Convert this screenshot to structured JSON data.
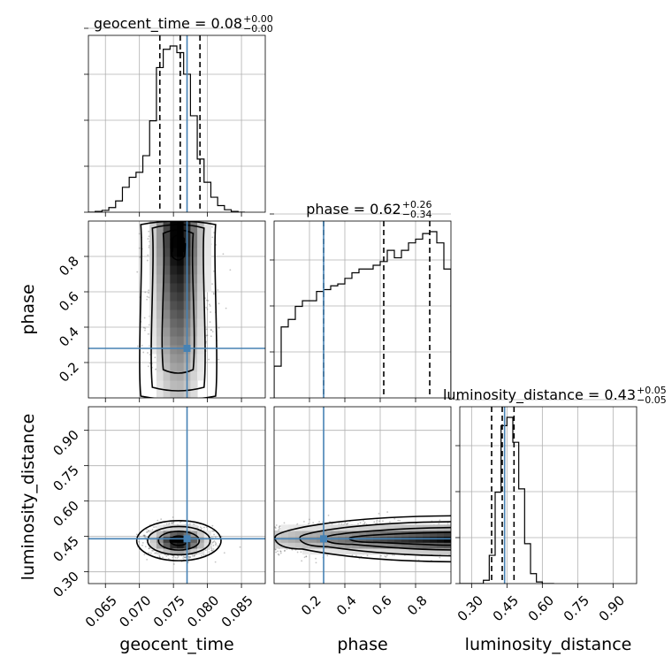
{
  "chart_data": {
    "type": "corner",
    "parameters": [
      "geocent_time",
      "phase",
      "luminosity_distance"
    ],
    "truths": {
      "geocent_time": 0.077,
      "phase": 0.28,
      "luminosity_distance": 0.44
    },
    "accent_color": "#4682b4",
    "grid": true,
    "ranges": {
      "geocent_time": [
        0.0625,
        0.0885
      ],
      "phase": [
        0.0,
        1.0
      ],
      "luminosity_distance": [
        0.25,
        1.0
      ]
    },
    "titles": {
      "geocent_time": {
        "prefix": "geocent_time = 0.08",
        "plus": "+0.00",
        "minus": "−0.00"
      },
      "phase": {
        "prefix": "phase = 0.62",
        "plus": "+0.26",
        "minus": "−0.34"
      },
      "luminosity_distance": {
        "prefix": "luminosity_distance = 0.43",
        "plus": "+0.05",
        "minus": "−0.05"
      }
    },
    "quantiles": {
      "geocent_time": [
        0.073,
        0.076,
        0.0789
      ],
      "phase": [
        0.28,
        0.62,
        0.88
      ],
      "luminosity_distance": [
        0.385,
        0.43,
        0.48
      ]
    },
    "ticks": {
      "geocent_time": {
        "values": [
          0.065,
          0.07,
          0.075,
          0.08,
          0.085
        ],
        "labels": [
          "0.065",
          "0.070",
          "0.075",
          "0.080",
          "0.085"
        ]
      },
      "phase": {
        "values": [
          0.2,
          0.4,
          0.6,
          0.8
        ],
        "labels": [
          "0.2",
          "0.4",
          "0.6",
          "0.8"
        ]
      },
      "luminosity_distance": {
        "values": [
          0.3,
          0.45,
          0.6,
          0.75,
          0.9
        ],
        "labels": [
          "0.30",
          "0.45",
          "0.60",
          "0.75",
          "0.90"
        ]
      }
    },
    "histograms": {
      "geocent_time": {
        "edges": [
          0.0625,
          0.0635,
          0.0645,
          0.0655,
          0.0665,
          0.0675,
          0.0685,
          0.0695,
          0.0705,
          0.0715,
          0.0725,
          0.0735,
          0.0745,
          0.0755,
          0.0765,
          0.0775,
          0.0785,
          0.0795,
          0.0805,
          0.0815,
          0.0825,
          0.0835,
          0.0845,
          0.0855
        ],
        "heights": [
          0.0,
          0.005,
          0.011,
          0.028,
          0.068,
          0.15,
          0.21,
          0.24,
          0.34,
          0.55,
          0.87,
          0.98,
          1.0,
          0.96,
          0.83,
          0.58,
          0.32,
          0.18,
          0.09,
          0.04,
          0.015,
          0.005,
          0.0
        ]
      },
      "phase": {
        "edges": [
          0.0,
          0.04,
          0.08,
          0.12,
          0.16,
          0.2,
          0.24,
          0.28,
          0.32,
          0.36,
          0.4,
          0.44,
          0.48,
          0.52,
          0.56,
          0.6,
          0.64,
          0.68,
          0.72,
          0.76,
          0.8,
          0.84,
          0.88,
          0.92,
          0.96,
          1.0
        ],
        "heights": [
          0.17,
          0.38,
          0.42,
          0.49,
          0.52,
          0.52,
          0.57,
          0.58,
          0.6,
          0.61,
          0.64,
          0.67,
          0.69,
          0.69,
          0.71,
          0.73,
          0.79,
          0.75,
          0.79,
          0.83,
          0.85,
          0.88,
          0.89,
          0.83,
          0.69
        ]
      },
      "luminosity_distance": {
        "edges": [
          0.25,
          0.275,
          0.3,
          0.325,
          0.35,
          0.375,
          0.4,
          0.425,
          0.45,
          0.475,
          0.5,
          0.525,
          0.55,
          0.575,
          0.6,
          0.625,
          0.65
        ],
        "heights": [
          0.0,
          0.0,
          0.0,
          0.0,
          0.02,
          0.17,
          0.55,
          0.95,
          1.0,
          0.85,
          0.57,
          0.24,
          0.06,
          0.01,
          0.0,
          0.0
        ]
      }
    },
    "contour_levels": {
      "phase_vs_geocent_time": [
        {
          "x_center": 0.0757,
          "x_halfwidths": [
            0.0055,
            0.0038,
            0.0022,
            0.0009
          ],
          "y_range": [
            [
              0.01,
              0.98
            ],
            [
              0.06,
              0.96
            ],
            [
              0.16,
              0.93
            ],
            [
              0.8,
              0.9
            ]
          ]
        }
      ],
      "luminosity_distance_vs_geocent_time": [
        {
          "x_center": 0.0758,
          "y_center": 0.432,
          "x_halfwidths": [
            0.0062,
            0.0046,
            0.003,
            0.0013
          ],
          "y_halfwidths": [
            0.085,
            0.06,
            0.04,
            0.02
          ]
        }
      ],
      "luminosity_distance_vs_phase": [
        {
          "y_center": 0.44,
          "widths_top": [
            0.09,
            0.065,
            0.04,
            0.02
          ]
        }
      ]
    }
  }
}
